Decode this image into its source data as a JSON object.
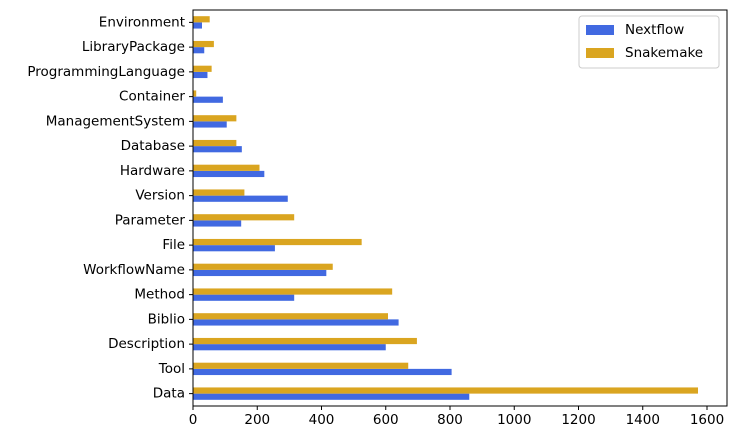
{
  "chart_data": {
    "type": "bar",
    "orientation": "horizontal",
    "title": "",
    "xlabel": "",
    "ylabel": "",
    "categories": [
      "Data",
      "Tool",
      "Description",
      "Biblio",
      "Method",
      "WorkflowName",
      "File",
      "Parameter",
      "Version",
      "Hardware",
      "Database",
      "ManagementSystem",
      "Container",
      "ProgrammingLanguage",
      "LibraryPackage",
      "Environment"
    ],
    "series": [
      {
        "name": "Nextflow",
        "color": "#4169e1",
        "values": [
          860,
          805,
          600,
          640,
          315,
          415,
          255,
          150,
          295,
          222,
          152,
          105,
          93,
          45,
          35,
          28
        ]
      },
      {
        "name": "Snakemake",
        "color": "#daa520",
        "values": [
          1572,
          670,
          697,
          607,
          620,
          435,
          525,
          315,
          160,
          207,
          135,
          135,
          10,
          58,
          65,
          52
        ]
      }
    ],
    "xlim": [
      0,
      1600
    ],
    "xticks": [
      0,
      200,
      400,
      600,
      800,
      1000,
      1200,
      1400,
      1600
    ],
    "grid": false,
    "legend_position": "top-right"
  }
}
